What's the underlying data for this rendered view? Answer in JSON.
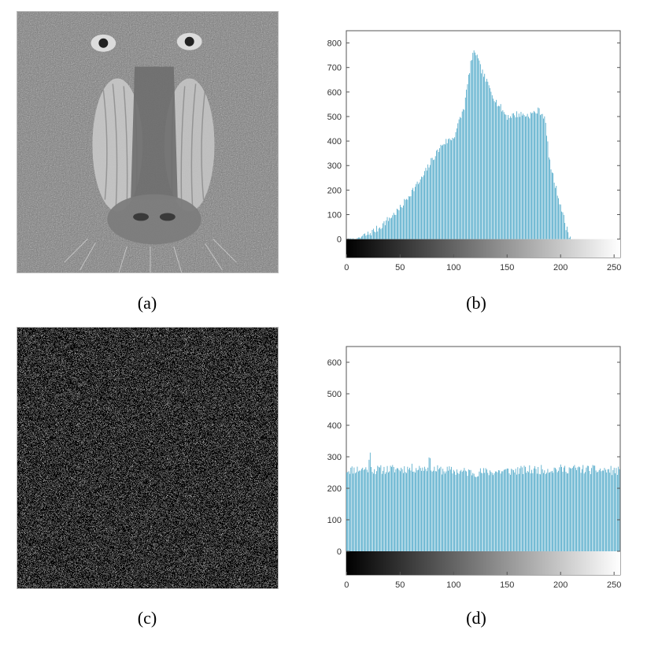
{
  "panels": [
    {
      "caption": "(a)"
    },
    {
      "caption": "(b)"
    },
    {
      "caption": "(c)"
    },
    {
      "caption": "(d)"
    }
  ],
  "chart_data": [
    {
      "type": "bar",
      "panel": "(b)",
      "title": "",
      "xlabel": "",
      "ylabel": "",
      "xlim": [
        0,
        255
      ],
      "ylim": [
        -75,
        850
      ],
      "x_ticks": [
        0,
        50,
        100,
        150,
        200,
        250
      ],
      "y_ticks": [
        0,
        100,
        200,
        300,
        400,
        500,
        600,
        700,
        800
      ],
      "bar_color": "#3a9ec2",
      "colorbar": "grayscale 0-255",
      "profile_points": [
        [
          0,
          0
        ],
        [
          10,
          2
        ],
        [
          20,
          20
        ],
        [
          30,
          45
        ],
        [
          40,
          85
        ],
        [
          50,
          125
        ],
        [
          60,
          190
        ],
        [
          70,
          245
        ],
        [
          80,
          325
        ],
        [
          90,
          390
        ],
        [
          100,
          415
        ],
        [
          110,
          540
        ],
        [
          116,
          720
        ],
        [
          120,
          770
        ],
        [
          125,
          700
        ],
        [
          130,
          650
        ],
        [
          140,
          560
        ],
        [
          150,
          500
        ],
        [
          160,
          510
        ],
        [
          170,
          505
        ],
        [
          180,
          525
        ],
        [
          185,
          500
        ],
        [
          190,
          310
        ],
        [
          195,
          220
        ],
        [
          200,
          140
        ],
        [
          205,
          50
        ],
        [
          210,
          0
        ],
        [
          255,
          0
        ]
      ]
    },
    {
      "type": "bar",
      "panel": "(d)",
      "title": "",
      "xlabel": "",
      "ylabel": "",
      "xlim": [
        0,
        255
      ],
      "ylim": [
        -75,
        650
      ],
      "x_ticks": [
        0,
        50,
        100,
        150,
        200,
        250
      ],
      "y_ticks": [
        0,
        100,
        200,
        300,
        400,
        500,
        600
      ],
      "bar_color": "#3a9ec2",
      "colorbar": "grayscale 0-255",
      "profile_points": [
        [
          0,
          258
        ],
        [
          20,
          262
        ],
        [
          22,
          305
        ],
        [
          24,
          258
        ],
        [
          75,
          265
        ],
        [
          77,
          292
        ],
        [
          80,
          260
        ],
        [
          120,
          250
        ],
        [
          170,
          258
        ],
        [
          210,
          262
        ],
        [
          255,
          255
        ]
      ]
    }
  ]
}
